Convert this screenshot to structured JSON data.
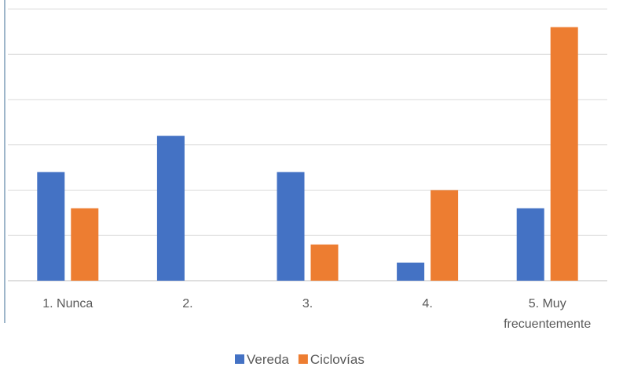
{
  "chart_data": {
    "type": "bar",
    "categories": [
      [
        "1. Nunca"
      ],
      [
        "2."
      ],
      [
        "3."
      ],
      [
        "4."
      ],
      [
        "5. Muy",
        "frecuentemente"
      ]
    ],
    "series": [
      {
        "name": "Vereda",
        "color": "#4472C4",
        "values": [
          6,
          8,
          6,
          1,
          4
        ]
      },
      {
        "name": "Ciclovías",
        "color": "#ED7D31",
        "values": [
          4,
          0,
          2,
          5,
          14
        ]
      }
    ],
    "ylim": [
      0,
      15
    ],
    "grid": true,
    "legend": "bottom"
  }
}
